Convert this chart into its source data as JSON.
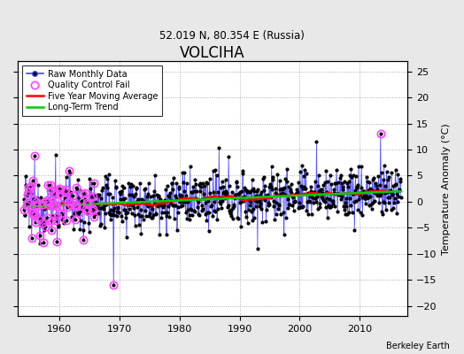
{
  "title": "VOLCIHA",
  "subtitle": "52.019 N, 80.354 E (Russia)",
  "ylabel": "Temperature Anomaly (°C)",
  "xlabel_credit": "Berkeley Earth",
  "ylim": [
    -22,
    27
  ],
  "yticks": [
    -20,
    -15,
    -10,
    -5,
    0,
    5,
    10,
    15,
    20,
    25
  ],
  "xlim": [
    1953,
    2018
  ],
  "xticks": [
    1960,
    1970,
    1980,
    1990,
    2000,
    2010
  ],
  "start_year": 1954,
  "end_year": 2017,
  "raw_line_color": "#4444ff",
  "raw_dot_color": "#000000",
  "qc_color": "#ff44ff",
  "moving_avg_color": "#ff0000",
  "trend_color": "#00cc00",
  "background_color": "#e8e8e8",
  "plot_background": "#ffffff",
  "grid_color": "#aaaaaa",
  "seed": 12345
}
